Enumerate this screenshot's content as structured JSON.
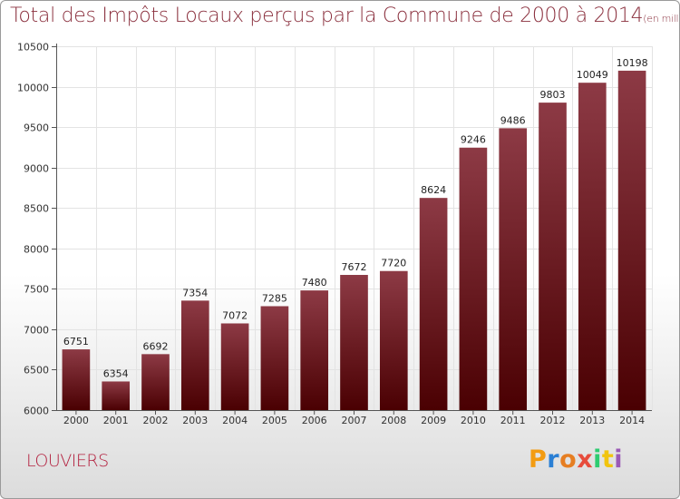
{
  "title": "Total des Impôts Locaux perçus par la Commune de 2000 à 2014",
  "subtitle": "(en milliers d'€)",
  "city": "LOUVIERS",
  "brand": {
    "letters": [
      "P",
      "r",
      "o",
      "x",
      "i",
      "t",
      "i"
    ],
    "colors": [
      "#f39c12",
      "#2a7fd4",
      "#e67e22",
      "#e74c3c",
      "#2ecc71",
      "#f1c40f",
      "#9b59b6"
    ]
  },
  "colors": {
    "bar_top": "#8d3a45",
    "bar_bottom": "#4a0002",
    "title": "#8a2f3d",
    "city": "#b3213f",
    "grid": "#e3e3e3"
  },
  "chart_data": {
    "type": "bar",
    "categories": [
      "2000",
      "2001",
      "2002",
      "2003",
      "2004",
      "2005",
      "2006",
      "2007",
      "2008",
      "2009",
      "2010",
      "2011",
      "2012",
      "2013",
      "2014"
    ],
    "values": [
      6751,
      6354,
      6692,
      7354,
      7072,
      7285,
      7480,
      7672,
      7720,
      8624,
      9246,
      9486,
      9803,
      10049,
      10198
    ],
    "data_labels": [
      "6751",
      "6354",
      "6692",
      "7354",
      "7072",
      "7285",
      "7480",
      "7672",
      "7720",
      "8624",
      "9246",
      "9486",
      "9803",
      "10049",
      "10198"
    ],
    "ylim": [
      6000,
      10500
    ],
    "yticks": [
      6000,
      6500,
      7000,
      7500,
      8000,
      8500,
      9000,
      9500,
      10000,
      10500
    ],
    "grid": true,
    "xlabel": "",
    "ylabel": ""
  }
}
